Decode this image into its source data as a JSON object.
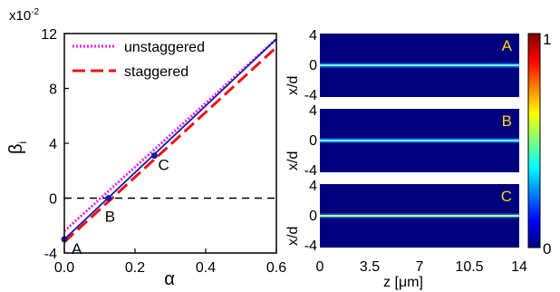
{
  "chart_data": [
    {
      "type": "line",
      "ylabel": "β",
      "ylabel_sub": "i",
      "xlabel": "α",
      "y_multiplier": "x10",
      "y_multiplier_exp": "-2",
      "xlim": [
        0,
        0.6
      ],
      "ylim": [
        -4,
        12
      ],
      "xticks": [
        "0.0",
        "0.2",
        "0.4",
        "0.6"
      ],
      "yticks": [
        "-4",
        "0",
        "4",
        "8",
        "12"
      ],
      "legend": [
        {
          "label": "unstaggered",
          "color": "#ee22ee",
          "style": "dotted"
        },
        {
          "label": "staggered",
          "color": "#ee1111",
          "style": "dashed"
        }
      ],
      "series": [
        {
          "name": "unstaggered",
          "color": "#ee22ee",
          "style": "dotted",
          "x": [
            0.0,
            0.6
          ],
          "y": [
            -2.4,
            11.6
          ]
        },
        {
          "name": "staggered",
          "color": "#ee1111",
          "style": "dashed",
          "x": [
            0.0,
            0.6
          ],
          "y": [
            -3.2,
            11.0
          ]
        },
        {
          "color": "#1a1aa8",
          "style": "solid",
          "x": [
            0.0,
            0.6
          ],
          "y": [
            -3.0,
            11.6
          ]
        }
      ],
      "reference_line": {
        "y": 0,
        "color": "#000000",
        "style": "dashed"
      },
      "points": [
        {
          "label": "A",
          "x": 0.0,
          "y": -3.0
        },
        {
          "label": "B",
          "x": 0.125,
          "y": 0.0
        },
        {
          "label": "C",
          "x": 0.255,
          "y": 3.1
        }
      ]
    },
    {
      "type": "heatmap",
      "ylabel": "x/d",
      "xlabel": "z [μm]",
      "xlim": [
        0,
        14
      ],
      "ylim": [
        -4,
        4
      ],
      "xticks": [
        "0",
        "3.5",
        "7",
        "10.5",
        "14"
      ],
      "yticks": [
        "4",
        "0",
        "-4"
      ],
      "panels": [
        {
          "label": "A",
          "intensity": 0.35
        },
        {
          "label": "B",
          "intensity": 0.5
        },
        {
          "label": "C",
          "intensity": 0.75
        }
      ],
      "colorbar": {
        "ticks": [
          "1",
          "0"
        ],
        "range": [
          0,
          1
        ]
      },
      "colormap": [
        "#00007f",
        "#0000ff",
        "#007fff",
        "#00ffff",
        "#7fff7f",
        "#ffff00",
        "#ff7f00",
        "#ff0000",
        "#7f0000"
      ]
    }
  ]
}
